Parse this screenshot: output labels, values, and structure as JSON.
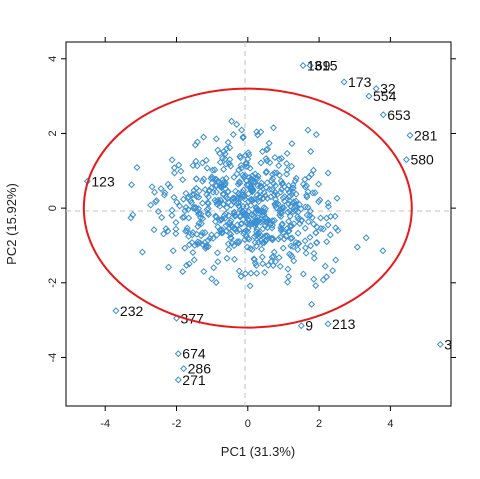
{
  "chart_data": {
    "type": "scatter",
    "title": "",
    "xlabel": "PC1 (31.3%)",
    "ylabel": "PC2 (15.92%)",
    "xlim": [
      -5.1,
      5.7
    ],
    "ylim": [
      -5.3,
      4.45
    ],
    "xticks": [
      -4,
      -2,
      0,
      2,
      4
    ],
    "yticks": [
      -4,
      -2,
      0,
      2,
      4
    ],
    "grid": false,
    "reference_lines": {
      "x": 0,
      "y": 0,
      "style": "dashed",
      "color": "#bfbfbf"
    },
    "point_style": {
      "shape": "diamond",
      "color": "#3a8fd1",
      "fill": "none"
    },
    "ellipse": {
      "center": [
        0,
        0
      ],
      "radii": [
        4.6,
        3.2
      ],
      "color": "#e8191a"
    },
    "labeled_points": [
      {
        "label": "315",
        "x": 1.75,
        "y": 3.82
      },
      {
        "label": "169",
        "x": 1.55,
        "y": 3.82
      },
      {
        "label": "173",
        "x": 2.7,
        "y": 3.38
      },
      {
        "label": "32",
        "x": 3.6,
        "y": 3.2
      },
      {
        "label": "554",
        "x": 3.4,
        "y": 3.0
      },
      {
        "label": "653",
        "x": 3.8,
        "y": 2.5
      },
      {
        "label": "281",
        "x": 4.55,
        "y": 1.95
      },
      {
        "label": "580",
        "x": 4.45,
        "y": 1.3
      },
      {
        "label": "123",
        "x": -4.5,
        "y": 0.72
      },
      {
        "label": "232",
        "x": -3.7,
        "y": -2.75
      },
      {
        "label": "377",
        "x": -2.0,
        "y": -2.95
      },
      {
        "label": "9",
        "x": 1.5,
        "y": -3.15
      },
      {
        "label": "213",
        "x": 2.25,
        "y": -3.1
      },
      {
        "label": "3",
        "x": 5.4,
        "y": -3.65
      },
      {
        "label": "674",
        "x": -1.95,
        "y": -3.9
      },
      {
        "label": "286",
        "x": -1.8,
        "y": -4.3
      },
      {
        "label": "271",
        "x": -1.95,
        "y": -4.6
      }
    ],
    "cloud": {
      "count": 660,
      "center": [
        0,
        0
      ],
      "sd": [
        1.7,
        1.15
      ],
      "range_x": [
        -4.2,
        4.3
      ],
      "range_y": [
        -2.9,
        3.6
      ]
    }
  }
}
